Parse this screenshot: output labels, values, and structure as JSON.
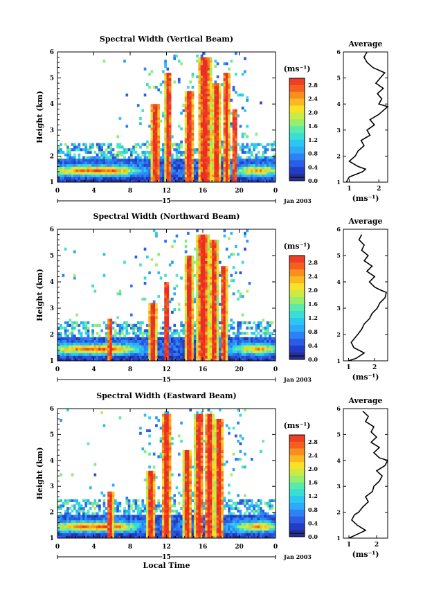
{
  "chart_data": [
    {
      "type": "heatmap",
      "title": "Spectral Width (Vertical Beam)",
      "ylabel": "Height (km)",
      "ylim": [
        1,
        6
      ],
      "y_ticks": [
        "1",
        "2",
        "3",
        "4",
        "5",
        "6"
      ],
      "xlim": [
        0,
        24
      ],
      "x_ticks": [
        "0",
        "4",
        "8",
        "12",
        "16",
        "20",
        "0"
      ],
      "date_marker": "15",
      "date_label": "Jan 2003",
      "colorbar": {
        "unit": "(ms⁻¹)",
        "tick_labels": [
          "2.8",
          "2.4",
          "2.0",
          "1.6",
          "1.2",
          "0.8",
          "0.4",
          "0.0"
        ],
        "range": [
          0,
          3.0
        ]
      },
      "average_profile": {
        "title": "Average",
        "xlabel": "(ms⁻¹)",
        "x_ticks": [
          "1",
          "2"
        ],
        "xlim": [
          0.8,
          2.3
        ],
        "height_km": [
          1.0,
          1.2,
          1.4,
          1.5,
          1.6,
          1.8,
          2.0,
          2.2,
          2.4,
          2.6,
          2.8,
          3.0,
          3.2,
          3.4,
          3.6,
          3.8,
          3.9,
          4.0,
          4.2,
          4.4,
          4.6,
          4.8,
          5.0,
          5.2,
          5.4,
          5.6,
          5.8,
          6.0
        ],
        "width_ms": [
          0.9,
          1.0,
          1.45,
          1.55,
          1.3,
          1.0,
          1.2,
          1.3,
          1.5,
          1.4,
          1.7,
          1.6,
          1.85,
          1.7,
          2.0,
          2.2,
          2.3,
          2.0,
          2.1,
          1.95,
          2.15,
          1.9,
          2.05,
          2.2,
          1.8,
          1.6,
          1.5,
          1.6
        ]
      },
      "field": "vertical"
    },
    {
      "type": "heatmap",
      "title": "Spectral Width (Northward Beam)",
      "ylabel": "Height (km)",
      "ylim": [
        1,
        6
      ],
      "y_ticks": [
        "1",
        "2",
        "3",
        "4",
        "5",
        "6"
      ],
      "xlim": [
        0,
        24
      ],
      "x_ticks": [
        "0",
        "4",
        "8",
        "12",
        "16",
        "20",
        "0"
      ],
      "date_marker": "15",
      "date_label": "Jan 2003",
      "colorbar": {
        "unit": "(ms⁻¹)",
        "tick_labels": [
          "2.8",
          "2.4",
          "2.0",
          "1.6",
          "1.2",
          "0.8",
          "0.4",
          "0.0"
        ],
        "range": [
          0,
          3.0
        ]
      },
      "average_profile": {
        "title": "Average",
        "xlabel": "(ms⁻¹)",
        "x_ticks": [
          "1",
          "2"
        ],
        "xlim": [
          0.8,
          2.5
        ],
        "height_km": [
          1.0,
          1.1,
          1.3,
          1.5,
          1.7,
          2.0,
          2.2,
          2.4,
          2.6,
          2.8,
          3.0,
          3.2,
          3.4,
          3.6,
          3.7,
          3.8,
          4.0,
          4.2,
          4.4,
          4.6,
          4.8,
          5.0,
          5.2,
          5.4,
          5.6,
          5.8
        ],
        "width_ms": [
          1.0,
          1.3,
          1.6,
          1.2,
          1.1,
          1.35,
          1.5,
          1.6,
          1.8,
          1.9,
          2.1,
          2.2,
          2.4,
          2.45,
          2.2,
          2.0,
          1.8,
          2.0,
          1.7,
          1.9,
          1.6,
          1.75,
          1.5,
          1.6,
          1.4,
          1.5
        ]
      },
      "field": "north"
    },
    {
      "type": "heatmap",
      "title": "Spectral Width (Eastward Beam)",
      "ylabel": "Height (km)",
      "xlabel": "Local Time",
      "ylim": [
        1,
        6
      ],
      "y_ticks": [
        "1",
        "2",
        "3",
        "4",
        "5",
        "6"
      ],
      "xlim": [
        0,
        24
      ],
      "x_ticks": [
        "0",
        "4",
        "8",
        "12",
        "16",
        "20",
        "0"
      ],
      "date_marker": "15",
      "date_label": "Jan 2003",
      "colorbar": {
        "unit": "(ms⁻¹)",
        "tick_labels": [
          "2.8",
          "2.4",
          "2.0",
          "1.6",
          "1.2",
          "0.8",
          "0.4",
          "0.0"
        ],
        "range": [
          0,
          3.0
        ]
      },
      "average_profile": {
        "title": "Average",
        "xlabel": "(ms⁻¹)",
        "x_ticks": [
          "1",
          "2"
        ],
        "xlim": [
          0.8,
          2.4
        ],
        "height_km": [
          1.0,
          1.1,
          1.3,
          1.5,
          1.7,
          1.9,
          2.0,
          2.2,
          2.4,
          2.6,
          2.8,
          3.0,
          3.2,
          3.4,
          3.6,
          3.8,
          4.0,
          4.1,
          4.3,
          4.5,
          4.7,
          4.9,
          5.1,
          5.3,
          5.5,
          5.7,
          5.9
        ],
        "width_ms": [
          1.0,
          1.2,
          1.6,
          1.3,
          1.1,
          1.2,
          1.35,
          1.5,
          1.7,
          1.6,
          1.85,
          1.9,
          2.1,
          2.2,
          2.0,
          2.3,
          2.4,
          2.1,
          1.9,
          2.1,
          1.8,
          2.0,
          1.8,
          1.9,
          1.6,
          1.7,
          1.5
        ]
      },
      "field": "east"
    }
  ]
}
